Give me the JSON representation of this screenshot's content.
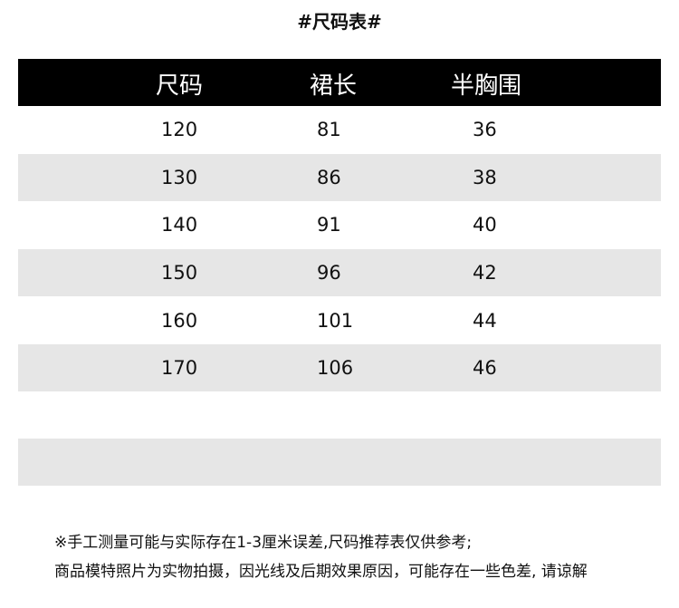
{
  "title": "#尺码表#",
  "table": {
    "headers": [
      "尺码",
      "裙长",
      "半胸围"
    ],
    "rows": [
      [
        "120",
        "81",
        "36"
      ],
      [
        "130",
        "86",
        "38"
      ],
      [
        "140",
        "91",
        "40"
      ],
      [
        "150",
        "96",
        "42"
      ],
      [
        "160",
        "101",
        "44"
      ],
      [
        "170",
        "106",
        "46"
      ],
      [
        "",
        "",
        ""
      ],
      [
        "",
        "",
        ""
      ]
    ],
    "header_bg": "#000000",
    "stripe_bg": "#e6e6e6"
  },
  "notes": [
    "※手工测量可能与实际存在1-3厘米误差,尺码推荐表仅供参考;",
    "商品模特照片为实物拍摄，因光线及后期效果原因，可能存在一些色差, 请谅解"
  ]
}
